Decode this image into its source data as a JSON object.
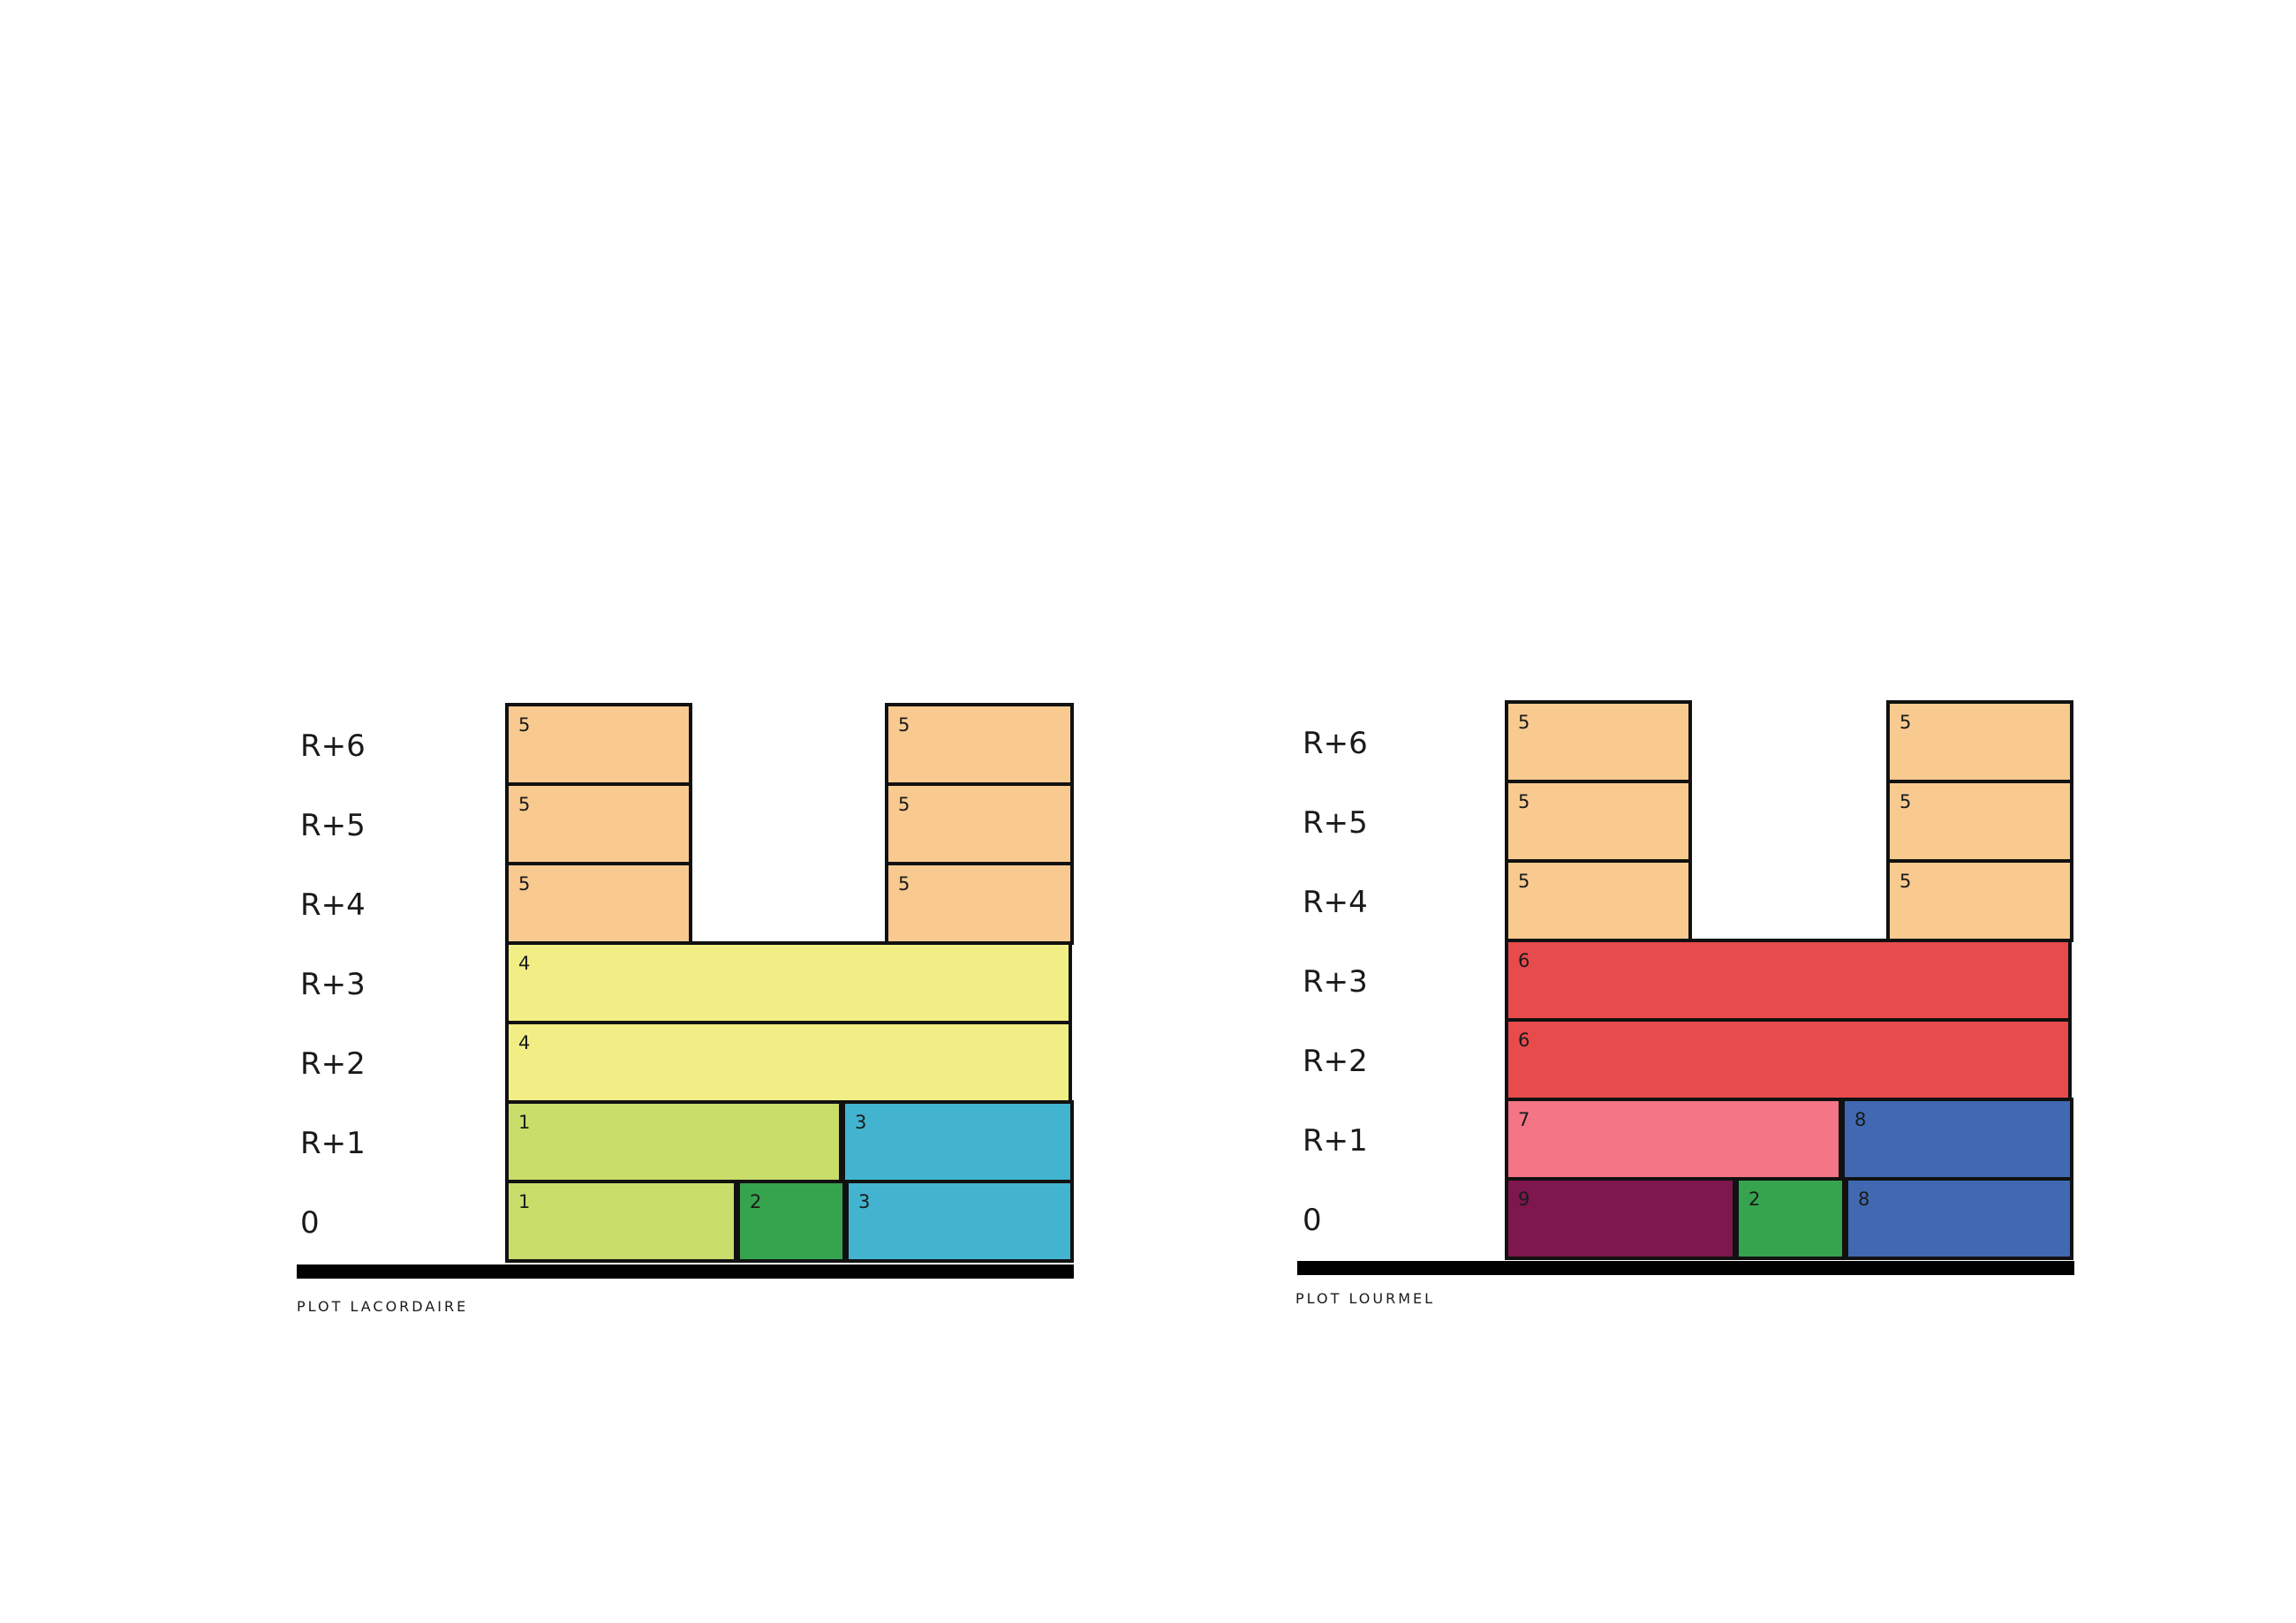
{
  "floor_labels": [
    "R+6",
    "R+5",
    "R+4",
    "R+3",
    "R+2",
    "R+1",
    "0"
  ],
  "colors": {
    "1": "#c8dd6a",
    "2": "#36a44f",
    "3": "#42b4d0",
    "4": "#f2ee86",
    "5": "#f8ca90",
    "6": "#e74b4b",
    "7": "#f47585",
    "8": "#4169b2",
    "9": "#7d174d",
    "ground": "#000000",
    "stroke": "#111111"
  },
  "diagrams": [
    {
      "caption": "PLOT LACORDAIRE",
      "blocks": [
        {
          "floor": "R+6",
          "num": "5"
        },
        {
          "floor": "R+6",
          "num": "5"
        },
        {
          "floor": "R+5",
          "num": "5"
        },
        {
          "floor": "R+5",
          "num": "5"
        },
        {
          "floor": "R+4",
          "num": "5"
        },
        {
          "floor": "R+4",
          "num": "5"
        },
        {
          "floor": "R+3",
          "num": "4"
        },
        {
          "floor": "R+2",
          "num": "4"
        },
        {
          "floor": "R+1",
          "num": "1"
        },
        {
          "floor": "R+1",
          "num": "3"
        },
        {
          "floor": "0",
          "num": "1"
        },
        {
          "floor": "0",
          "num": "2"
        },
        {
          "floor": "0",
          "num": "3"
        }
      ]
    },
    {
      "caption": "PLOT LOURMEL",
      "blocks": [
        {
          "floor": "R+6",
          "num": "5"
        },
        {
          "floor": "R+6",
          "num": "5"
        },
        {
          "floor": "R+5",
          "num": "5"
        },
        {
          "floor": "R+5",
          "num": "5"
        },
        {
          "floor": "R+4",
          "num": "5"
        },
        {
          "floor": "R+4",
          "num": "5"
        },
        {
          "floor": "R+3",
          "num": "6"
        },
        {
          "floor": "R+2",
          "num": "6"
        },
        {
          "floor": "R+1",
          "num": "7"
        },
        {
          "floor": "R+1",
          "num": "8"
        },
        {
          "floor": "0",
          "num": "9"
        },
        {
          "floor": "0",
          "num": "2"
        },
        {
          "floor": "0",
          "num": "8"
        }
      ]
    }
  ]
}
